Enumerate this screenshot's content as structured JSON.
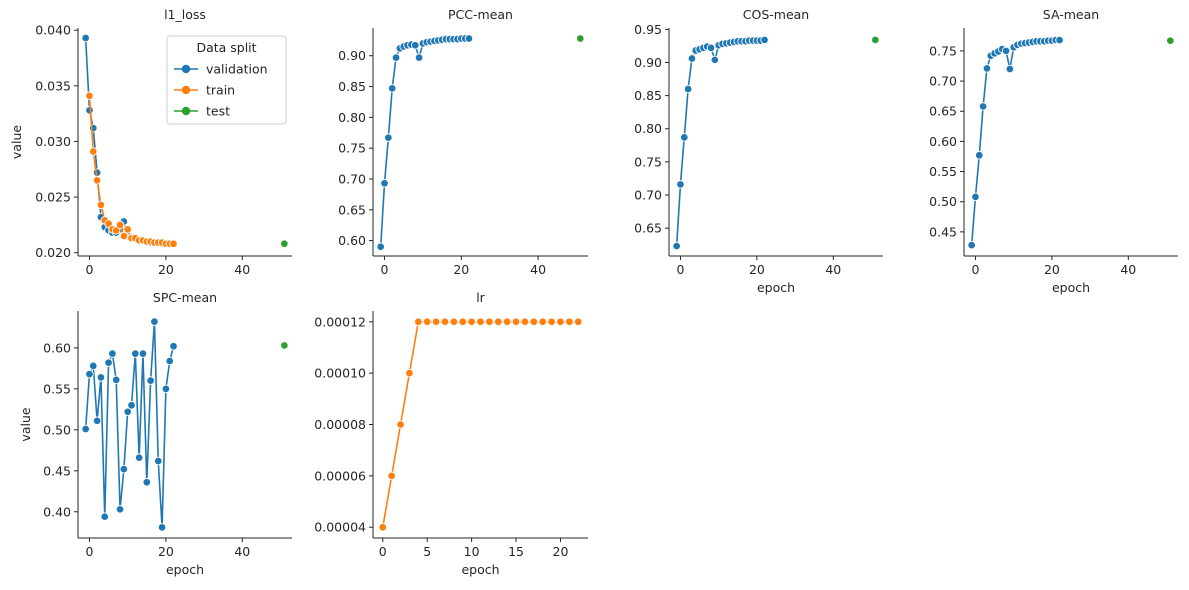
{
  "colors": {
    "validation": "#1f77b4",
    "train": "#ff7f0e",
    "test": "#2ca02c",
    "axis": "#262626"
  },
  "chart_data": [
    {
      "type": "line",
      "title": "l1_loss",
      "xlabel": "",
      "ylabel": "value",
      "xlim": [
        -3,
        53
      ],
      "ylim": [
        0.0197,
        0.0402
      ],
      "xticks": [
        0,
        20,
        40
      ],
      "yticks": [
        0.02,
        0.025,
        0.03,
        0.035,
        0.04
      ],
      "ytick_decimals": 3,
      "legend": {
        "title": "Data split",
        "position": "top-right",
        "entries": [
          "validation",
          "train",
          "test"
        ]
      },
      "series": [
        {
          "name": "validation",
          "color_key": "validation",
          "x": [
            -1,
            0,
            1,
            2,
            3,
            4,
            5,
            6,
            7,
            8,
            9,
            10,
            11,
            12,
            13,
            14,
            15,
            16,
            17,
            18,
            19,
            20,
            21,
            22
          ],
          "y": [
            0.0393,
            0.0328,
            0.0312,
            0.0272,
            0.0232,
            0.0223,
            0.022,
            0.0218,
            0.0218,
            0.0221,
            0.0228,
            0.0215,
            0.0214,
            0.0213,
            0.0212,
            0.0211,
            0.021,
            0.0209,
            0.0209,
            0.0209,
            0.0208,
            0.0208,
            0.0208,
            0.0208
          ]
        },
        {
          "name": "train",
          "color_key": "train",
          "x": [
            0,
            1,
            2,
            3,
            4,
            5,
            6,
            7,
            8,
            9,
            10,
            11,
            12,
            13,
            14,
            15,
            16,
            17,
            18,
            19,
            20,
            21,
            22
          ],
          "y": [
            0.0341,
            0.0291,
            0.0265,
            0.0243,
            0.0229,
            0.0226,
            0.0221,
            0.022,
            0.0225,
            0.0215,
            0.0221,
            0.0213,
            0.0213,
            0.0211,
            0.0211,
            0.021,
            0.021,
            0.0209,
            0.0209,
            0.0209,
            0.0208,
            0.0208,
            0.0208
          ]
        },
        {
          "name": "test",
          "color_key": "test",
          "x": [
            51
          ],
          "y": [
            0.0208
          ]
        }
      ]
    },
    {
      "type": "line",
      "title": "PCC-mean",
      "xlabel": "",
      "ylabel": "",
      "xlim": [
        -3,
        53
      ],
      "ylim": [
        0.575,
        0.945
      ],
      "xticks": [
        0,
        20,
        40
      ],
      "yticks": [
        0.6,
        0.65,
        0.7,
        0.75,
        0.8,
        0.85,
        0.9
      ],
      "ytick_decimals": 2,
      "series": [
        {
          "name": "validation",
          "color_key": "validation",
          "x": [
            -1,
            0,
            1,
            2,
            3,
            4,
            5,
            6,
            7,
            8,
            9,
            10,
            11,
            12,
            13,
            14,
            15,
            16,
            17,
            18,
            19,
            20,
            21,
            22
          ],
          "y": [
            0.59,
            0.693,
            0.767,
            0.847,
            0.897,
            0.912,
            0.915,
            0.917,
            0.918,
            0.917,
            0.897,
            0.92,
            0.922,
            0.923,
            0.924,
            0.925,
            0.926,
            0.927,
            0.927,
            0.927,
            0.927,
            0.928,
            0.928,
            0.928
          ]
        },
        {
          "name": "test",
          "color_key": "test",
          "x": [
            51
          ],
          "y": [
            0.928
          ]
        }
      ]
    },
    {
      "type": "line",
      "title": "COS-mean",
      "xlabel": "epoch",
      "ylabel": "",
      "xlim": [
        -3,
        53
      ],
      "ylim": [
        0.608,
        0.952
      ],
      "xticks": [
        0,
        20,
        40
      ],
      "yticks": [
        0.65,
        0.7,
        0.75,
        0.8,
        0.85,
        0.9,
        0.95
      ],
      "ytick_decimals": 2,
      "series": [
        {
          "name": "validation",
          "color_key": "validation",
          "x": [
            -1,
            0,
            1,
            2,
            3,
            4,
            5,
            6,
            7,
            8,
            9,
            10,
            11,
            12,
            13,
            14,
            15,
            16,
            17,
            18,
            19,
            20,
            21,
            22
          ],
          "y": [
            0.623,
            0.716,
            0.787,
            0.86,
            0.906,
            0.918,
            0.92,
            0.922,
            0.924,
            0.922,
            0.904,
            0.926,
            0.928,
            0.929,
            0.93,
            0.931,
            0.932,
            0.932,
            0.932,
            0.933,
            0.933,
            0.933,
            0.933,
            0.934
          ]
        },
        {
          "name": "test",
          "color_key": "test",
          "x": [
            51
          ],
          "y": [
            0.934
          ]
        }
      ]
    },
    {
      "type": "line",
      "title": "SA-mean",
      "xlabel": "epoch",
      "ylabel": "",
      "xlim": [
        -3,
        53
      ],
      "ylim": [
        0.41,
        0.788
      ],
      "xticks": [
        0,
        20,
        40
      ],
      "yticks": [
        0.45,
        0.5,
        0.55,
        0.6,
        0.65,
        0.7,
        0.75
      ],
      "ytick_decimals": 2,
      "series": [
        {
          "name": "validation",
          "color_key": "validation",
          "x": [
            -1,
            0,
            1,
            2,
            3,
            4,
            5,
            6,
            7,
            8,
            9,
            10,
            11,
            12,
            13,
            14,
            15,
            16,
            17,
            18,
            19,
            20,
            21,
            22
          ],
          "y": [
            0.428,
            0.508,
            0.577,
            0.658,
            0.721,
            0.742,
            0.746,
            0.749,
            0.753,
            0.75,
            0.72,
            0.756,
            0.76,
            0.762,
            0.763,
            0.764,
            0.765,
            0.766,
            0.766,
            0.766,
            0.767,
            0.767,
            0.768,
            0.768
          ]
        },
        {
          "name": "test",
          "color_key": "test",
          "x": [
            51
          ],
          "y": [
            0.767
          ]
        }
      ]
    },
    {
      "type": "line",
      "title": "SPC-mean",
      "xlabel": "epoch",
      "ylabel": "value",
      "xlim": [
        -3,
        53
      ],
      "ylim": [
        0.368,
        0.645
      ],
      "xticks": [
        0,
        20,
        40
      ],
      "yticks": [
        0.4,
        0.45,
        0.5,
        0.55,
        0.6
      ],
      "ytick_decimals": 2,
      "series": [
        {
          "name": "validation",
          "color_key": "validation",
          "x": [
            -1,
            0,
            1,
            2,
            3,
            4,
            5,
            6,
            7,
            8,
            9,
            10,
            11,
            12,
            13,
            14,
            15,
            16,
            17,
            18,
            19,
            20,
            21,
            22
          ],
          "y": [
            0.501,
            0.568,
            0.578,
            0.511,
            0.564,
            0.394,
            0.582,
            0.593,
            0.561,
            0.403,
            0.452,
            0.522,
            0.53,
            0.593,
            0.466,
            0.593,
            0.436,
            0.56,
            0.632,
            0.462,
            0.381,
            0.55,
            0.584,
            0.602
          ]
        },
        {
          "name": "test",
          "color_key": "test",
          "x": [
            51
          ],
          "y": [
            0.603
          ]
        }
      ]
    },
    {
      "type": "line",
      "title": "lr",
      "xlabel": "epoch",
      "ylabel": "",
      "xlim": [
        -1.1,
        23.1
      ],
      "ylim": [
        3.58e-05,
        0.0001242
      ],
      "xticks": [
        0,
        5,
        10,
        15,
        20
      ],
      "yticks": [
        4e-05,
        6e-05,
        8e-05,
        0.0001,
        0.00012
      ],
      "ytick_decimals": 5,
      "series": [
        {
          "name": "train",
          "color_key": "train",
          "x": [
            0,
            1,
            2,
            3,
            4,
            5,
            6,
            7,
            8,
            9,
            10,
            11,
            12,
            13,
            14,
            15,
            16,
            17,
            18,
            19,
            20,
            21,
            22
          ],
          "y": [
            4e-05,
            6e-05,
            8e-05,
            0.0001,
            0.00012,
            0.00012,
            0.00012,
            0.00012,
            0.00012,
            0.00012,
            0.00012,
            0.00012,
            0.00012,
            0.00012,
            0.00012,
            0.00012,
            0.00012,
            0.00012,
            0.00012,
            0.00012,
            0.00012,
            0.00012,
            0.00012
          ]
        }
      ]
    }
  ]
}
